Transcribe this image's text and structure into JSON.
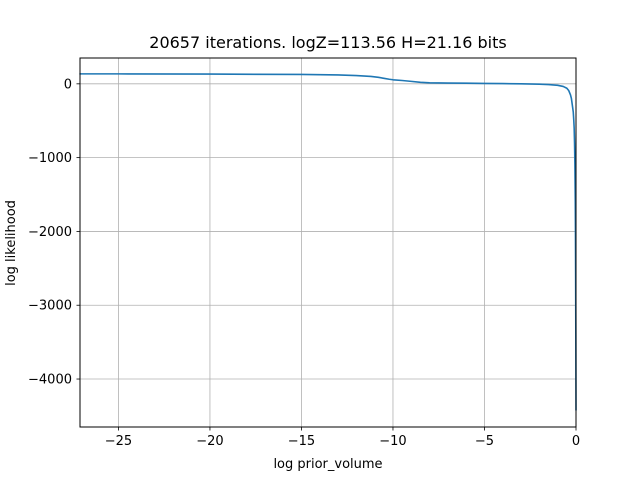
{
  "chart_data": {
    "type": "line",
    "title": "20657 iterations. logZ=113.56 H=21.16 bits",
    "xlabel": "log prior_volume",
    "ylabel": "log likelihood",
    "xlim": [
      -27.1,
      0
    ],
    "ylim": [
      -4650,
      350
    ],
    "grid": true,
    "x_ticks": [
      {
        "value": -25,
        "label": "−25"
      },
      {
        "value": -20,
        "label": "−20"
      },
      {
        "value": -15,
        "label": "−15"
      },
      {
        "value": -10,
        "label": "−10"
      },
      {
        "value": -5,
        "label": "−5"
      },
      {
        "value": 0,
        "label": "0"
      }
    ],
    "y_ticks": [
      {
        "value": 0,
        "label": "0"
      },
      {
        "value": -1000,
        "label": "−1000"
      },
      {
        "value": -2000,
        "label": "−2000"
      },
      {
        "value": -3000,
        "label": "−3000"
      },
      {
        "value": -4000,
        "label": "−4000"
      }
    ],
    "series": [
      {
        "color": "#1f77b4",
        "x": [
          -27.1,
          -25,
          -20,
          -15,
          -13,
          -12,
          -11.2,
          -10.8,
          -10.5,
          -10.2,
          -10.0,
          -9.5,
          -9.0,
          -8.5,
          -8.0,
          -7,
          -6,
          -5,
          -4,
          -3,
          -2,
          -1.5,
          -1.0,
          -0.7,
          -0.5,
          -0.4,
          -0.3,
          -0.25,
          -0.2,
          -0.15,
          -0.12,
          -0.1,
          -0.08,
          -0.06,
          -0.04,
          -0.03,
          -0.02,
          -0.01,
          0
        ],
        "y": [
          135,
          135,
          132,
          127,
          120,
          112,
          100,
          88,
          75,
          62,
          55,
          45,
          33,
          20,
          14,
          11,
          9,
          6,
          3,
          0,
          -5,
          -10,
          -20,
          -35,
          -60,
          -90,
          -150,
          -200,
          -290,
          -380,
          -500,
          -600,
          -800,
          -1100,
          -1600,
          -2000,
          -2600,
          -3400,
          -4420
        ]
      }
    ]
  }
}
